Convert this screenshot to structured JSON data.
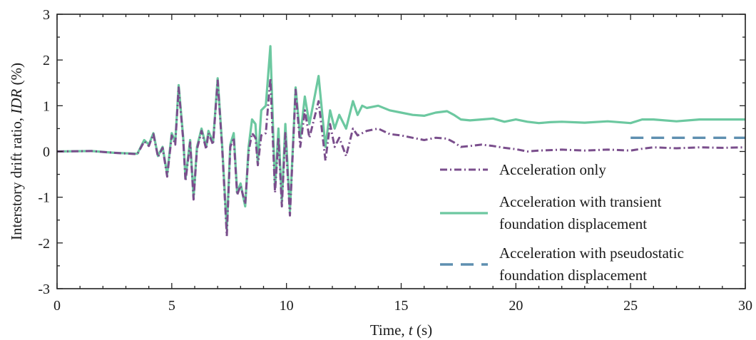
{
  "chart_data": {
    "type": "line",
    "xlabel": "Time, t (s)",
    "ylabel": "Interstory drift ratio, IDR (%)",
    "xlim": [
      0,
      30
    ],
    "ylim": [
      -3,
      3
    ],
    "xticks": [
      "0",
      "5",
      "10",
      "15",
      "20",
      "25",
      "30"
    ],
    "yticks": [
      "3",
      "2",
      "1",
      "0",
      "-1",
      "-2",
      "-3"
    ],
    "grid": false,
    "legend_position": "bottom-right",
    "series": [
      {
        "name": "Acceleration with transient foundation displacement",
        "label_lines": [
          "Acceleration with transient",
          "foundation displacement"
        ],
        "color": "#6cc8a0",
        "style": "solid",
        "points": [
          [
            0,
            0
          ],
          [
            1.5,
            0.01
          ],
          [
            2.5,
            -0.03
          ],
          [
            3.5,
            -0.05
          ],
          [
            3.8,
            0.25
          ],
          [
            4.0,
            0.15
          ],
          [
            4.2,
            0.4
          ],
          [
            4.4,
            -0.1
          ],
          [
            4.6,
            0.1
          ],
          [
            4.8,
            -0.5
          ],
          [
            5.0,
            0.4
          ],
          [
            5.15,
            0.2
          ],
          [
            5.3,
            1.45
          ],
          [
            5.5,
            0.3
          ],
          [
            5.6,
            -0.6
          ],
          [
            5.8,
            0.25
          ],
          [
            5.95,
            -1.0
          ],
          [
            6.1,
            0.1
          ],
          [
            6.3,
            0.5
          ],
          [
            6.5,
            0.1
          ],
          [
            6.6,
            0.45
          ],
          [
            6.8,
            0.2
          ],
          [
            7.0,
            1.6
          ],
          [
            7.2,
            0.1
          ],
          [
            7.4,
            -1.7
          ],
          [
            7.55,
            0.15
          ],
          [
            7.7,
            0.4
          ],
          [
            7.85,
            -0.9
          ],
          [
            8.0,
            -0.7
          ],
          [
            8.2,
            -1.2
          ],
          [
            8.35,
            0.1
          ],
          [
            8.5,
            0.7
          ],
          [
            8.65,
            0.6
          ],
          [
            8.75,
            -0.25
          ],
          [
            8.9,
            0.9
          ],
          [
            9.1,
            1.0
          ],
          [
            9.3,
            2.3
          ],
          [
            9.5,
            -0.8
          ],
          [
            9.65,
            0.5
          ],
          [
            9.8,
            -1.1
          ],
          [
            9.95,
            0.6
          ],
          [
            10.15,
            -1.3
          ],
          [
            10.4,
            1.4
          ],
          [
            10.6,
            0.3
          ],
          [
            10.8,
            1.2
          ],
          [
            11.0,
            0.6
          ],
          [
            11.4,
            1.65
          ],
          [
            11.7,
            0.1
          ],
          [
            11.9,
            0.9
          ],
          [
            12.1,
            0.5
          ],
          [
            12.3,
            0.8
          ],
          [
            12.6,
            0.5
          ],
          [
            12.9,
            1.1
          ],
          [
            13.1,
            0.8
          ],
          [
            13.3,
            1.0
          ],
          [
            13.5,
            0.95
          ],
          [
            14,
            1.0
          ],
          [
            14.5,
            0.9
          ],
          [
            15,
            0.85
          ],
          [
            15.5,
            0.8
          ],
          [
            16,
            0.78
          ],
          [
            16.5,
            0.85
          ],
          [
            17,
            0.88
          ],
          [
            17.3,
            0.8
          ],
          [
            17.6,
            0.7
          ],
          [
            18,
            0.68
          ],
          [
            18.5,
            0.7
          ],
          [
            19,
            0.72
          ],
          [
            19.5,
            0.65
          ],
          [
            20,
            0.7
          ],
          [
            20.5,
            0.65
          ],
          [
            21,
            0.62
          ],
          [
            21.5,
            0.64
          ],
          [
            22,
            0.65
          ],
          [
            23,
            0.63
          ],
          [
            24,
            0.66
          ],
          [
            25,
            0.62
          ],
          [
            25.5,
            0.7
          ],
          [
            26,
            0.7
          ],
          [
            27,
            0.66
          ],
          [
            28,
            0.7
          ],
          [
            29,
            0.7
          ],
          [
            30,
            0.7
          ]
        ]
      },
      {
        "name": "Acceleration only",
        "label_lines": [
          "Acceleration only"
        ],
        "color": "#7a4e8c",
        "style": "dashdot",
        "points": [
          [
            0,
            0
          ],
          [
            1.5,
            0.01
          ],
          [
            2.5,
            -0.03
          ],
          [
            3.5,
            -0.06
          ],
          [
            3.8,
            0.22
          ],
          [
            4.0,
            0.12
          ],
          [
            4.2,
            0.38
          ],
          [
            4.4,
            -0.12
          ],
          [
            4.6,
            0.08
          ],
          [
            4.8,
            -0.55
          ],
          [
            5.0,
            0.35
          ],
          [
            5.15,
            0.15
          ],
          [
            5.3,
            1.4
          ],
          [
            5.5,
            0.25
          ],
          [
            5.6,
            -0.65
          ],
          [
            5.8,
            0.2
          ],
          [
            5.95,
            -1.05
          ],
          [
            6.1,
            0.05
          ],
          [
            6.3,
            0.45
          ],
          [
            6.5,
            0.05
          ],
          [
            6.6,
            0.4
          ],
          [
            6.8,
            0.15
          ],
          [
            7.0,
            1.55
          ],
          [
            7.2,
            0.05
          ],
          [
            7.4,
            -1.85
          ],
          [
            7.55,
            0.1
          ],
          [
            7.7,
            0.3
          ],
          [
            7.85,
            -0.95
          ],
          [
            8.0,
            -0.75
          ],
          [
            8.2,
            -1.15
          ],
          [
            8.35,
            0.0
          ],
          [
            8.5,
            0.4
          ],
          [
            8.65,
            0.3
          ],
          [
            8.75,
            -0.3
          ],
          [
            8.9,
            0.35
          ],
          [
            9.1,
            0.4
          ],
          [
            9.3,
            1.6
          ],
          [
            9.5,
            -0.9
          ],
          [
            9.65,
            0.3
          ],
          [
            9.8,
            -1.2
          ],
          [
            9.95,
            0.4
          ],
          [
            10.15,
            -1.4
          ],
          [
            10.4,
            1.35
          ],
          [
            10.6,
            0.1
          ],
          [
            10.8,
            0.9
          ],
          [
            11.0,
            0.3
          ],
          [
            11.4,
            1.1
          ],
          [
            11.7,
            -0.2
          ],
          [
            11.9,
            0.6
          ],
          [
            12.1,
            0.1
          ],
          [
            12.3,
            0.3
          ],
          [
            12.6,
            -0.1
          ],
          [
            12.9,
            0.5
          ],
          [
            13.1,
            0.35
          ],
          [
            13.5,
            0.45
          ],
          [
            14,
            0.5
          ],
          [
            14.5,
            0.38
          ],
          [
            15,
            0.35
          ],
          [
            15.5,
            0.3
          ],
          [
            16,
            0.25
          ],
          [
            16.5,
            0.3
          ],
          [
            17,
            0.28
          ],
          [
            17.3,
            0.2
          ],
          [
            17.6,
            0.1
          ],
          [
            18,
            0.12
          ],
          [
            18.5,
            0.15
          ],
          [
            19,
            0.12
          ],
          [
            19.5,
            0.08
          ],
          [
            20,
            0.05
          ],
          [
            20.5,
            0.0
          ],
          [
            21,
            0.02
          ],
          [
            21.5,
            0.03
          ],
          [
            22,
            0.04
          ],
          [
            23,
            0.02
          ],
          [
            24,
            0.04
          ],
          [
            25,
            0.02
          ],
          [
            25.5,
            0.06
          ],
          [
            26,
            0.09
          ],
          [
            27,
            0.07
          ],
          [
            28,
            0.09
          ],
          [
            29,
            0.08
          ],
          [
            30,
            0.09
          ]
        ]
      },
      {
        "name": "Acceleration with pseudostatic foundation displacement",
        "label_lines": [
          "Acceleration with pseudostatic",
          "foundation displacement"
        ],
        "color": "#5e8fb0",
        "style": "dashed",
        "points": [
          [
            25,
            0.3
          ],
          [
            30,
            0.3
          ]
        ]
      }
    ]
  }
}
